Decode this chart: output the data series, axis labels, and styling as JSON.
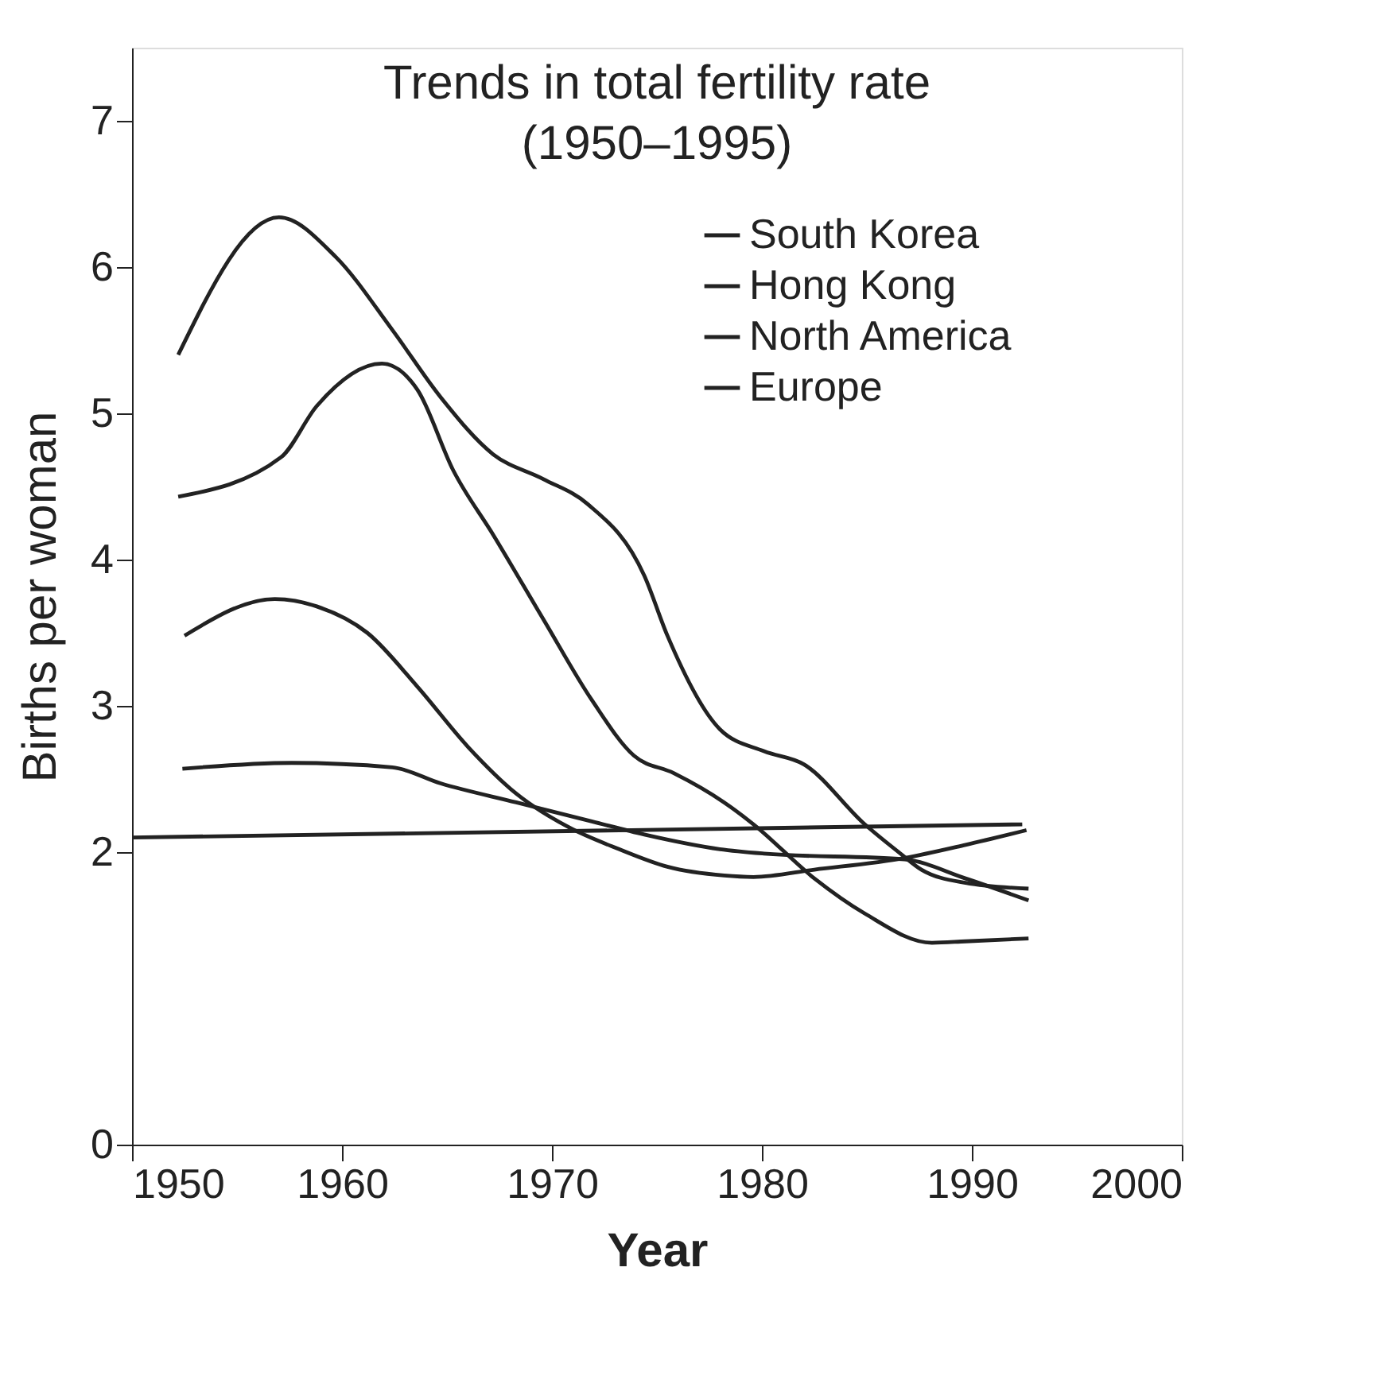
{
  "chart_data": {
    "type": "line",
    "title": "Trends in total fertility rate",
    "subtitle": "(1950–1995)",
    "xlabel": "Year",
    "ylabel": "Births per woman",
    "xlim": [
      1950,
      2000
    ],
    "xticks": [
      1950,
      1960,
      1970,
      1980,
      1990,
      2000
    ],
    "ylim": [
      0,
      7.5
    ],
    "yticks": [
      0,
      2,
      3,
      4,
      5,
      6,
      7
    ],
    "grid": false,
    "legend": "top right",
    "marker": "none",
    "line_style": "solid",
    "series": [
      {
        "name": "South Korea",
        "color": "#222222",
        "x": [
          1952.2,
          1957.0,
          1959.7,
          1962.4,
          1964.7,
          1967.2,
          1969.6,
          1971.7,
          1974.4,
          1975.5,
          1978.0,
          1980.1,
          1982.0,
          1984.9,
          1986.6,
          1987.6,
          1989.7,
          1992.7
        ],
        "values": [
          5.4,
          6.34,
          6.07,
          5.57,
          5.11,
          4.72,
          4.55,
          4.38,
          3.89,
          3.48,
          2.84,
          2.69,
          2.6,
          2.19,
          1.99,
          1.88,
          1.79,
          1.75
        ]
      },
      {
        "name": "Hong Kong",
        "color": "#222222",
        "x": [
          1952.2,
          1957.1,
          1958.8,
          1961.9,
          1963.6,
          1965.3,
          1967.2,
          1969.6,
          1971.9,
          1973.9,
          1975.8,
          1978.2,
          1979.6,
          1982.5,
          1984.9,
          1988.1,
          1989.7,
          1992.7
        ],
        "values": [
          4.43,
          4.7,
          5.05,
          5.34,
          5.16,
          4.61,
          4.17,
          3.59,
          3.04,
          2.66,
          2.54,
          2.34,
          2.19,
          1.82,
          1.58,
          1.38,
          1.39,
          1.41
        ]
      },
      {
        "name": "North America",
        "color": "#222222",
        "x": [
          1952.5,
          1956.8,
          1958.8,
          1961.2,
          1963.6,
          1966.0,
          1968.3,
          1970.8,
          1973.2,
          1975.5,
          1978.2,
          1979.6,
          1982.5,
          1986.8,
          1989.7,
          1992.6
        ],
        "values": [
          3.48,
          3.73,
          3.68,
          3.5,
          3.13,
          2.72,
          2.4,
          2.17,
          2.02,
          1.9,
          1.84,
          1.83,
          1.88,
          1.96,
          2.05,
          2.15
        ]
      },
      {
        "name": "Europe",
        "color": "#222222",
        "x": [
          1952.4,
          1957.6,
          1962.4,
          1964.7,
          1968.3,
          1971.9,
          1974.4,
          1978.0,
          1980.1,
          1986.8,
          1989.7,
          1992.7
        ],
        "values": [
          2.57,
          2.61,
          2.58,
          2.47,
          2.34,
          2.21,
          2.12,
          2.02,
          1.99,
          1.95,
          1.82,
          1.67
        ]
      },
      {
        "color": "#222222",
        "x": [
          1950,
          1992.4
        ],
        "values": [
          2.1,
          2.19
        ]
      }
    ]
  }
}
